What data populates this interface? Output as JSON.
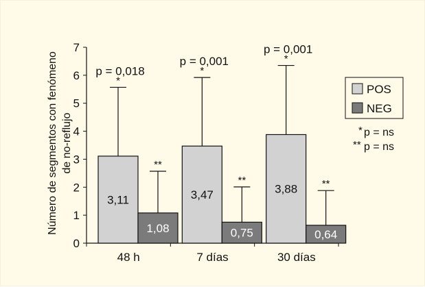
{
  "colors": {
    "pos": "#d2d2d2",
    "neg": "#7b7b7b",
    "background": "#fffbe8",
    "axis": "#111111"
  },
  "chart_data": {
    "type": "bar",
    "title": "",
    "ylabel_line1": "Número de segmentos con fenómeno",
    "ylabel_line2": "de no-reflujo",
    "xlabel": "",
    "ylim": [
      0,
      7
    ],
    "yticks": [
      "0",
      "1",
      "2",
      "3",
      "4",
      "5",
      "6",
      "7"
    ],
    "categories": [
      "48 h",
      "7 días",
      "30 días"
    ],
    "series": [
      {
        "name": "POS",
        "values": [
          3.11,
          3.47,
          3.88
        ],
        "labels": [
          "3,11",
          "3,47",
          "3,88"
        ],
        "error_top": [
          5.57,
          5.92,
          6.35
        ],
        "marker": "*"
      },
      {
        "name": "NEG",
        "values": [
          1.08,
          0.75,
          0.64
        ],
        "labels": [
          "1,08",
          "0,75",
          "0,64"
        ],
        "error_top": [
          2.57,
          2.01,
          1.88
        ],
        "marker": "**"
      }
    ],
    "p_values": [
      "p = 0,018",
      "p = 0,001",
      "p = 0,001"
    ],
    "legend_position": "right",
    "notes": [
      {
        "marker": "*",
        "text": "p = ns"
      },
      {
        "marker": "**",
        "text": "p = ns"
      }
    ]
  }
}
